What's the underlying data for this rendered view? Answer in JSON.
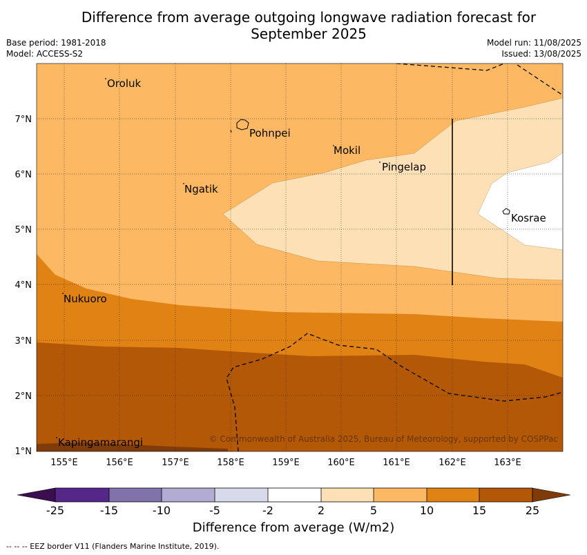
{
  "title": {
    "line1": "Difference from average outgoing longwave radiation forecast for",
    "line2": "September 2025"
  },
  "meta": {
    "base_period": "Base period: 1981-2018",
    "model": "Model: ACCESS-S2",
    "model_run": "Model run: 11/08/2025",
    "issued": "Issued: 13/08/2025"
  },
  "axes": {
    "x_ticks": [
      "155°E",
      "156°E",
      "157°E",
      "158°E",
      "159°E",
      "160°E",
      "161°E",
      "162°E",
      "163°E"
    ],
    "y_ticks": [
      "1°N",
      "2°N",
      "3°N",
      "4°N",
      "5°N",
      "6°N",
      "7°N"
    ]
  },
  "places": [
    {
      "name": "Oroluk"
    },
    {
      "name": "Pohnpei"
    },
    {
      "name": "Mokil"
    },
    {
      "name": "Pingelap"
    },
    {
      "name": "Ngatik"
    },
    {
      "name": "Kosrae"
    },
    {
      "name": "Nukuoro"
    },
    {
      "name": "Kapingamarangi"
    }
  ],
  "copyright": "© Commonwealth of Australia 2025, Bureau of Meteorology, supported by COSPPac",
  "colorbar": {
    "ticks": [
      "-25",
      "-15",
      "-10",
      "-5",
      "-2",
      "2",
      "5",
      "10",
      "15",
      "25"
    ],
    "colors": [
      "#3b0f4f",
      "#542788",
      "#8073ac",
      "#b2abd2",
      "#d8daeb",
      "#ffffff",
      "#fee0b6",
      "#fdb863",
      "#e08214",
      "#b35806",
      "#7f3b08"
    ],
    "label": "Difference from average (W/m2)"
  },
  "footnote": "--  --  -- EEZ border V11 (Flanders Marine Institute, 2019)."
}
